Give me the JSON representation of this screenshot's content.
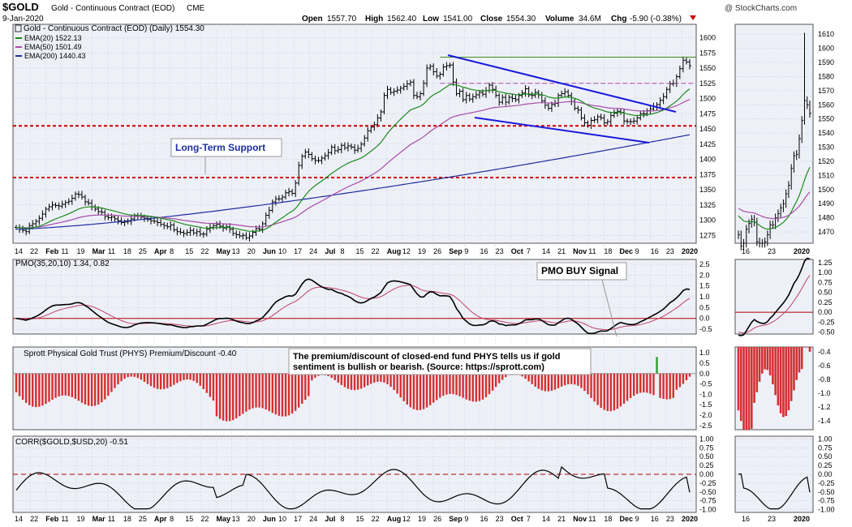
{
  "header": {
    "symbol": "$GOLD",
    "name": "Gold - Continuous Contract (EOD)",
    "exchange": "CME",
    "date": "9-Jan-2020",
    "open_label": "Open",
    "open": "1557.70",
    "high_label": "High",
    "high": "1562.40",
    "low_label": "Low",
    "low": "1541.00",
    "close_label": "Close",
    "close": "1554.30",
    "volume_label": "Volume",
    "volume": "34.6M",
    "chg_label": "Chg",
    "chg": "-5.90 (-0.38%)",
    "watermark": "@ StockCharts.com"
  },
  "colors": {
    "ema20": "#1a8a1a",
    "ema50": "#a64ca6",
    "ema200": "#1e2fa0",
    "support": "#cc0000",
    "trend": "#1a1adc",
    "resistance": "#3a8f1a",
    "bar_red": "#d43030",
    "bar_green": "#2e9e2e",
    "panel_bg": "#eef0f8"
  },
  "chart_data": [
    {
      "type": "ohlc",
      "title": "Gold - Continuous Contract (EOD) (Daily) 1554.30",
      "legend": [
        "EMA(20) 1522.13",
        "EMA(50) 1501.49",
        "EMA(200) 1440.43"
      ],
      "y_ticks": [
        "1600",
        "1575",
        "1550",
        "1525",
        "1500",
        "1475",
        "1450",
        "1425",
        "1400",
        "1375",
        "1350",
        "1325",
        "1300",
        "1275"
      ],
      "ylim": [
        1262,
        1622
      ],
      "x_labels": [
        "14",
        "22",
        "Feb",
        "11",
        "19",
        "Mar",
        "11",
        "18",
        "25",
        "Apr",
        "8",
        "15",
        "22",
        "May",
        "13",
        "20",
        "Jun",
        "10",
        "17",
        "24",
        "Jul",
        "8",
        "15",
        "22",
        "Aug",
        "12",
        "19",
        "26",
        "Sep",
        "9",
        "16",
        "23",
        "Oct",
        "7",
        "14",
        "21",
        "Nov",
        "11",
        "18",
        "Dec",
        "9",
        "16",
        "23",
        "2020"
      ],
      "close": [
        1288,
        1285,
        1283,
        1281,
        1291,
        1294,
        1298,
        1303,
        1310,
        1318,
        1322,
        1325,
        1324,
        1323,
        1326,
        1329,
        1331,
        1336,
        1343,
        1342,
        1338,
        1330,
        1328,
        1322,
        1318,
        1314,
        1313,
        1306,
        1304,
        1305,
        1302,
        1299,
        1296,
        1297,
        1298,
        1302,
        1307,
        1306,
        1305,
        1303,
        1301,
        1299,
        1298,
        1296,
        1293,
        1291,
        1289,
        1292,
        1284,
        1281,
        1280,
        1278,
        1280,
        1283,
        1279,
        1281,
        1277,
        1277,
        1285,
        1288,
        1291,
        1293,
        1290,
        1287,
        1289,
        1285,
        1278,
        1276,
        1274,
        1275,
        1271,
        1274,
        1280,
        1286,
        1285,
        1294,
        1308,
        1316,
        1330,
        1335,
        1335,
        1338,
        1345,
        1347,
        1344,
        1361,
        1390,
        1405,
        1412,
        1408,
        1401,
        1398,
        1398,
        1402,
        1406,
        1411,
        1420,
        1414,
        1416,
        1423,
        1419,
        1422,
        1420,
        1415,
        1418,
        1425,
        1435,
        1447,
        1453,
        1457,
        1468,
        1478,
        1505,
        1515,
        1510,
        1512,
        1514,
        1517,
        1520,
        1524,
        1527,
        1505,
        1503,
        1508,
        1525,
        1550,
        1553,
        1544,
        1537,
        1540,
        1552,
        1554,
        1555,
        1527,
        1508,
        1512,
        1498,
        1505,
        1499,
        1503,
        1506,
        1510,
        1507,
        1513,
        1522,
        1515,
        1505,
        1494,
        1502,
        1494,
        1502,
        1500,
        1498,
        1505,
        1509,
        1516,
        1506,
        1505,
        1510,
        1506,
        1496,
        1489,
        1484,
        1490,
        1492,
        1505,
        1508,
        1511,
        1505,
        1495,
        1484,
        1481,
        1468,
        1460,
        1456,
        1464,
        1465,
        1470,
        1468,
        1460,
        1462,
        1472,
        1476,
        1479,
        1477,
        1463,
        1462,
        1462,
        1463,
        1468,
        1475,
        1475,
        1480,
        1483,
        1487,
        1490,
        1497,
        1503,
        1515,
        1524,
        1525,
        1536,
        1549,
        1563,
        1560,
        1554
      ],
      "ema20_last": 1522.13,
      "ema50_last": 1501.49,
      "ema200_last": 1440.43,
      "horizontal_lines": [
        {
          "y": 1568,
          "style": "solid"
        },
        {
          "y": 1525,
          "style": "dashed"
        },
        {
          "y": 1455,
          "style": "dashed"
        },
        {
          "y": 1370,
          "style": "dashed"
        }
      ],
      "annotation": "Long-Term Support"
    },
    {
      "type": "line",
      "title": "PMO(35,20,10) 1.34, 0.82",
      "y_ticks": [
        "2.5",
        "2.0",
        "1.5",
        "1.0",
        "0.5",
        "0.0",
        "-0.5"
      ],
      "ylim": [
        -0.72,
        2.72
      ],
      "pmo_last": 1.34,
      "signal_last": 0.82,
      "annotation": "PMO BUY Signal"
    },
    {
      "type": "bar",
      "title": "Sprott Physical Gold Trust (PHYS) Premium/Discount -0.40",
      "y_ticks": [
        "1.0",
        "0.5",
        "0.0",
        "-0.5",
        "-1.0",
        "-1.5",
        "-2.0",
        "-2.5"
      ],
      "ylim": [
        -2.7,
        1.28
      ],
      "last": -0.4,
      "annotation": "The premium/discount of closed-end fund PHYS tells us if gold sentiment is bullish or bearish. (Source: https://sprott.com)"
    },
    {
      "type": "line",
      "title": "CORR($GOLD,$USD,20) -0.51",
      "y_ticks": [
        "1.00",
        "0.75",
        "0.50",
        "0.25",
        "0.00",
        "-0.25",
        "-0.50",
        "-0.75",
        "-1.00"
      ],
      "ylim": [
        -1.08,
        1.08
      ],
      "last": -0.51
    }
  ],
  "right_panel": {
    "x_labels": [
      "16",
      "23",
      "2020"
    ],
    "price_ticks": [
      "1610",
      "1600",
      "1590",
      "1580",
      "1570",
      "1560",
      "1550",
      "1540",
      "1530",
      "1520",
      "1510",
      "1500",
      "1490",
      "1480",
      "1470"
    ],
    "price_lim": [
      1462,
      1617
    ],
    "pmo_ticks": [
      "1.25",
      "1.00",
      "0.75",
      "0.50",
      "0.25",
      "0.00",
      "-0.25",
      "-0.50"
    ],
    "pmo_lim": [
      -0.55,
      1.33
    ],
    "prem_ticks": [
      "-0.4",
      "-0.6",
      "-0.8",
      "-1.0",
      "-1.2",
      "-1.4"
    ],
    "prem_lim": [
      -1.53,
      -0.33
    ],
    "corr_ticks": [
      "1.00",
      "0.75",
      "0.50",
      "0.25",
      "0.00",
      "-0.25",
      "-0.50",
      "-0.75",
      "-1.00"
    ]
  }
}
